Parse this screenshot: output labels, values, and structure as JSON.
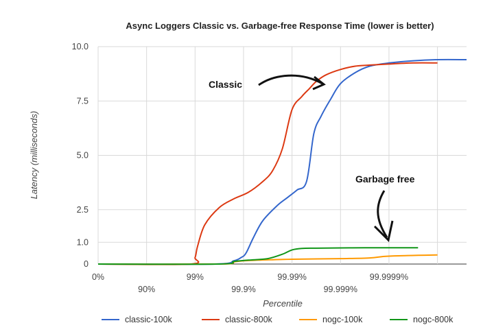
{
  "chart_data": {
    "type": "line",
    "title": "Async Loggers Classic vs. Garbage-free Response Time (lower is better)",
    "xlabel": "Percentile",
    "ylabel": "Latency (milliseconds)",
    "ylim": [
      0,
      10
    ],
    "xlim": [
      0,
      7.6
    ],
    "x_scale": "log-percentile (number of nines)",
    "x_ticks_upper": [
      {
        "x": 0,
        "label": "0%"
      },
      {
        "x": 2,
        "label": "99%"
      },
      {
        "x": 4,
        "label": "99.99%"
      },
      {
        "x": 6,
        "label": "99.9999%"
      }
    ],
    "x_ticks_lower": [
      {
        "x": 1,
        "label": "90%"
      },
      {
        "x": 3,
        "label": "99.9%"
      },
      {
        "x": 5,
        "label": "99.999%"
      }
    ],
    "y_ticks": [
      {
        "y": 0,
        "label": "0"
      },
      {
        "y": 1,
        "label": "1.0"
      },
      {
        "y": 2.5,
        "label": "2.5"
      },
      {
        "y": 5,
        "label": "5.0"
      },
      {
        "y": 7.5,
        "label": "7.5"
      },
      {
        "y": 10,
        "label": "10.0"
      }
    ],
    "grid": true,
    "legend_position": "bottom",
    "series": [
      {
        "name": "classic-100k",
        "color": "#3366cc",
        "x": [
          0,
          2.4,
          2.8,
          2.95,
          3.05,
          3.2,
          3.4,
          3.7,
          3.9,
          4.1,
          4.3,
          4.45,
          4.6,
          4.8,
          5.0,
          5.3,
          5.6,
          6.0,
          6.5,
          7.0,
          7.6
        ],
        "y": [
          0,
          0,
          0.15,
          0.3,
          0.5,
          1.2,
          2.0,
          2.7,
          3.05,
          3.4,
          3.8,
          6.0,
          6.8,
          7.6,
          8.3,
          8.8,
          9.1,
          9.25,
          9.35,
          9.4,
          9.4
        ]
      },
      {
        "name": "classic-800k",
        "color": "#dc3912",
        "x": [
          0,
          1.9,
          2.0,
          2.05,
          2.2,
          2.5,
          2.8,
          3.1,
          3.4,
          3.6,
          3.8,
          4.0,
          4.2,
          4.35,
          4.5,
          4.7,
          5.0,
          5.3,
          5.6,
          6.0,
          6.5,
          7.0
        ],
        "y": [
          0,
          0,
          0.3,
          0.8,
          1.8,
          2.6,
          3.0,
          3.3,
          3.8,
          4.3,
          5.3,
          7.1,
          7.7,
          8.05,
          8.4,
          8.7,
          8.95,
          9.1,
          9.15,
          9.2,
          9.25,
          9.25
        ]
      },
      {
        "name": "nogc-100k",
        "color": "#ff9900",
        "x": [
          0,
          2.5,
          2.8,
          3.0,
          3.3,
          3.6,
          4.0,
          5.0,
          5.6,
          5.9,
          6.2,
          6.6,
          7.0
        ],
        "y": [
          0,
          0,
          0.1,
          0.15,
          0.18,
          0.2,
          0.22,
          0.25,
          0.28,
          0.35,
          0.38,
          0.4,
          0.42
        ]
      },
      {
        "name": "nogc-800k",
        "color": "#109618",
        "x": [
          0,
          2.5,
          2.8,
          3.1,
          3.5,
          3.8,
          4.0,
          4.2,
          4.5,
          5.0,
          5.5,
          6.0,
          6.5,
          6.6
        ],
        "y": [
          0,
          0,
          0.12,
          0.18,
          0.25,
          0.45,
          0.65,
          0.72,
          0.73,
          0.74,
          0.75,
          0.75,
          0.75,
          0.75
        ]
      }
    ],
    "annotations": [
      {
        "text": "Classic"
      },
      {
        "text": "Garbage free"
      }
    ]
  }
}
